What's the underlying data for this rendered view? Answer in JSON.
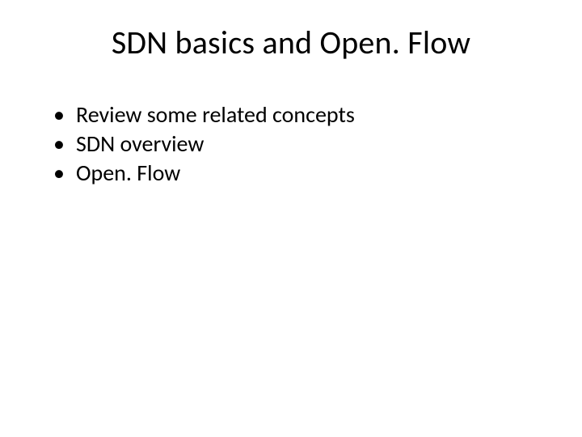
{
  "slide": {
    "title": "SDN basics and Open. Flow",
    "title_fontsize": 40,
    "title_color": "#000000",
    "background_color": "#ffffff",
    "bullets": [
      {
        "text": "Review some related concepts"
      },
      {
        "text": "SDN overview"
      },
      {
        "text": "Open. Flow"
      }
    ],
    "bullet_marker": "•",
    "body_fontsize": 28,
    "body_color": "#000000",
    "font_family": "Calibri"
  }
}
